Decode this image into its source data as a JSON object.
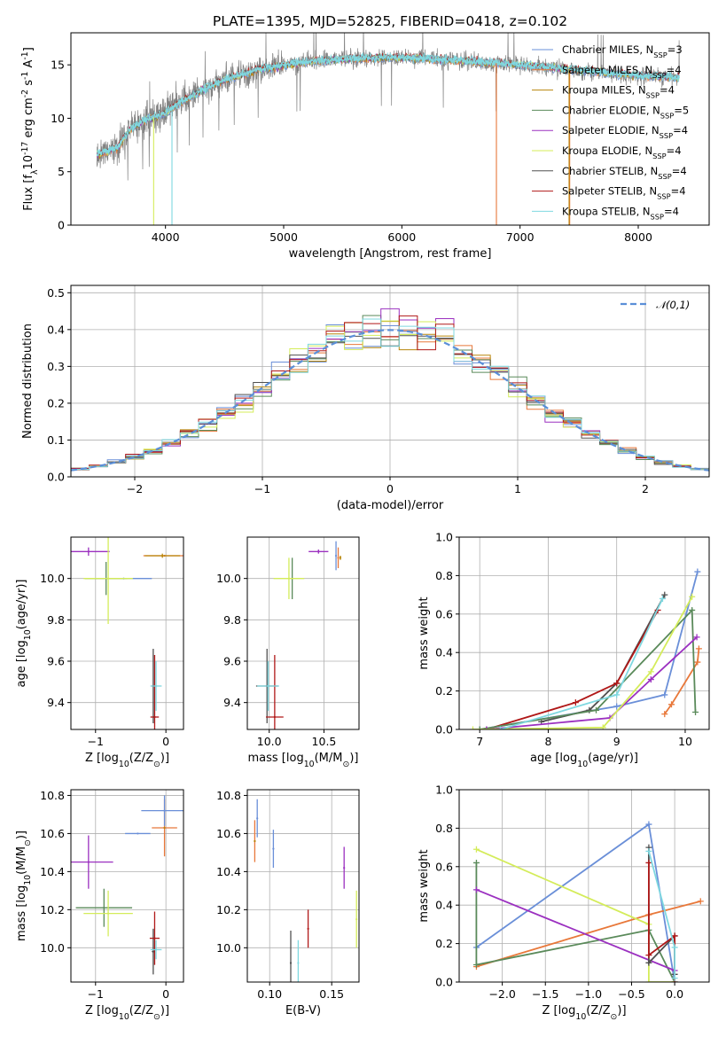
{
  "figure": {
    "title": "PLATE=1395, MJD=52825, FIBERID=0418, z=0.102"
  },
  "models": [
    {
      "name": "Chabrier MILES, N$_{SSP}$=3",
      "color": "#6a8fd8"
    },
    {
      "name": "Salpeter MILES, N$_{SSP}$=4",
      "color": "#e8783a"
    },
    {
      "name": "Kroupa MILES, N$_{SSP}$=4",
      "color": "#b8860b"
    },
    {
      "name": "Chabrier ELODIE, N$_{SSP}$=5",
      "color": "#5a8a5a"
    },
    {
      "name": "Salpeter ELODIE, N$_{SSP}$=4",
      "color": "#9b30c0"
    },
    {
      "name": "Kroupa ELODIE, N$_{SSP}$=4",
      "color": "#d4ec5a"
    },
    {
      "name": "Chabrier STELIB, N$_{SSP}$=4",
      "color": "#505050"
    },
    {
      "name": "Salpeter STELIB, N$_{SSP}$=4",
      "color": "#b01818"
    },
    {
      "name": "Kroupa STELIB, N$_{SSP}$=4",
      "color": "#7fd8e0"
    }
  ],
  "chart_data": [
    {
      "id": "spectrum",
      "type": "line",
      "title": "PLATE=1395, MJD=52825, FIBERID=0418, z=0.102",
      "xlabel": "wavelength [Angstrom, rest frame]",
      "ylabel": "Flux [f$_\\lambda$10$^{-17}$ erg cm$^{-2}$ s$^{-1}$ A$^{-1}$]",
      "xlim": [
        3200,
        8600
      ],
      "ylim": [
        0,
        18
      ],
      "xticks": [
        4000,
        5000,
        6000,
        7000,
        8000
      ],
      "yticks": [
        0,
        5,
        10,
        15
      ],
      "continuum": [
        [
          3420,
          6.6
        ],
        [
          3600,
          7.3
        ],
        [
          3700,
          9.0
        ],
        [
          3800,
          9.7
        ],
        [
          3900,
          10.1
        ],
        [
          4000,
          10.5
        ],
        [
          4100,
          11.3
        ],
        [
          4300,
          12.6
        ],
        [
          4500,
          13.6
        ],
        [
          4800,
          14.6
        ],
        [
          5200,
          15.3
        ],
        [
          5600,
          15.6
        ],
        [
          6000,
          15.7
        ],
        [
          6500,
          15.4
        ],
        [
          7000,
          15.0
        ],
        [
          7500,
          14.5
        ],
        [
          8000,
          14.0
        ],
        [
          8350,
          13.8
        ]
      ],
      "data_color": "#808080",
      "model_color": "#7fd8e0",
      "legend_position": "upper right"
    },
    {
      "id": "residuals",
      "type": "histogram",
      "xlabel": "(data-model)/error",
      "ylabel": "Normed distribution",
      "xlim": [
        -2.5,
        2.5
      ],
      "ylim": [
        0,
        0.52
      ],
      "xticks": [
        -2,
        -1,
        0,
        1,
        2
      ],
      "yticks": [
        0.0,
        0.1,
        0.2,
        0.3,
        0.4,
        0.5
      ],
      "bins": 35,
      "reference_label": "$\\mathcal{N}(0,1)$",
      "reference_color": "#5b8fd8",
      "legend_position": "upper right",
      "grid": true
    },
    {
      "id": "age_vs_Z",
      "type": "errorbar",
      "xlabel": "Z [log$_{10}$(Z/Z$_\\odot$)]",
      "ylabel": "age  [log$_{10}$(age/yr)]",
      "xlim": [
        -1.35,
        0.25
      ],
      "ylim": [
        9.27,
        10.2
      ],
      "xticks": [
        -1,
        0
      ],
      "yticks": [
        9.4,
        9.6,
        9.8,
        10.0
      ],
      "grid": true,
      "points": [
        {
          "model": 0,
          "x": -0.6,
          "y": 10.0,
          "xerr": 0.4,
          "yerr": 0.0
        },
        {
          "model": 1,
          "x": -0.02,
          "y": 10.11,
          "xerr": 0.3,
          "yerr": 0.0
        },
        {
          "model": 2,
          "x": -0.05,
          "y": 10.11,
          "xerr": 0.25,
          "yerr": 0.01
        },
        {
          "model": 3,
          "x": -0.85,
          "y": 10.0,
          "xerr": 0.3,
          "yerr": 0.08
        },
        {
          "model": 4,
          "x": -1.1,
          "y": 10.13,
          "xerr": 0.3,
          "yerr": 0.02
        },
        {
          "model": 5,
          "x": -0.82,
          "y": 10.0,
          "xerr": 0.35,
          "yerr": 0.22
        },
        {
          "model": 6,
          "x": -0.18,
          "y": 9.48,
          "xerr": 0.02,
          "yerr": 0.18
        },
        {
          "model": 7,
          "x": -0.16,
          "y": 9.33,
          "xerr": 0.06,
          "yerr": 0.3
        },
        {
          "model": 8,
          "x": -0.14,
          "y": 9.48,
          "xerr": 0.08,
          "yerr": 0.12
        }
      ]
    },
    {
      "id": "age_vs_mass",
      "type": "errorbar",
      "xlabel": "mass [log$_{10}$(M/M$_\\odot$)]",
      "ylabel": "",
      "xlim": [
        9.8,
        10.82
      ],
      "ylim": [
        9.27,
        10.2
      ],
      "xticks": [
        10.0,
        10.5
      ],
      "yticks": [
        9.4,
        9.6,
        9.8,
        10.0
      ],
      "grid": true,
      "points": [
        {
          "model": 0,
          "x": 10.61,
          "y": 10.11,
          "xerr": 0.0,
          "yerr": 0.07
        },
        {
          "model": 1,
          "x": 10.63,
          "y": 10.1,
          "xerr": 0.0,
          "yerr": 0.05
        },
        {
          "model": 2,
          "x": 10.65,
          "y": 10.1,
          "xerr": 0.0,
          "yerr": 0.01
        },
        {
          "model": 3,
          "x": 10.21,
          "y": 10.0,
          "xerr": 0.0,
          "yerr": 0.1
        },
        {
          "model": 4,
          "x": 10.45,
          "y": 10.13,
          "xerr": 0.09,
          "yerr": 0.01
        },
        {
          "model": 5,
          "x": 10.18,
          "y": 10.0,
          "xerr": 0.14,
          "yerr": 0.1
        },
        {
          "model": 6,
          "x": 9.98,
          "y": 9.48,
          "xerr": 0.1,
          "yerr": 0.18
        },
        {
          "model": 7,
          "x": 10.05,
          "y": 9.33,
          "xerr": 0.08,
          "yerr": 0.3
        },
        {
          "model": 8,
          "x": 9.99,
          "y": 9.48,
          "xerr": 0.1,
          "yerr": 0.12
        }
      ]
    },
    {
      "id": "massweight_vs_age",
      "type": "line",
      "xlabel": "age  [log$_{10}$(age/yr)]",
      "ylabel": "mass weight",
      "xlim": [
        6.7,
        10.35
      ],
      "ylim": [
        0,
        1.0
      ],
      "xticks": [
        7,
        8,
        9,
        10
      ],
      "yticks": [
        0.0,
        0.2,
        0.4,
        0.6,
        0.8,
        1.0
      ],
      "grid": true,
      "series": [
        {
          "model": 0,
          "x": [
            7.0,
            9.0,
            9.7,
            10.18
          ],
          "y": [
            0.0,
            0.12,
            0.18,
            0.82
          ]
        },
        {
          "model": 1,
          "x": [
            9.7,
            9.8,
            10.18,
            10.2
          ],
          "y": [
            0.08,
            0.13,
            0.35,
            0.42
          ]
        },
        {
          "model": 6,
          "x": [
            7.9,
            8.6,
            9.0,
            9.7
          ],
          "y": [
            0.04,
            0.1,
            0.24,
            0.7
          ]
        },
        {
          "model": 7,
          "x": [
            7.1,
            8.4,
            9.0,
            9.6
          ],
          "y": [
            0.0,
            0.14,
            0.24,
            0.62
          ]
        },
        {
          "model": 3,
          "x": [
            7.0,
            8.7,
            10.1,
            10.15
          ],
          "y": [
            0.0,
            0.1,
            0.62,
            0.09
          ]
        },
        {
          "model": 4,
          "x": [
            7.1,
            8.9,
            9.5,
            10.17
          ],
          "y": [
            0.0,
            0.06,
            0.26,
            0.48
          ]
        },
        {
          "model": 5,
          "x": [
            6.9,
            8.8,
            9.5,
            10.1
          ],
          "y": [
            0.0,
            0.01,
            0.3,
            0.69
          ]
        },
        {
          "model": 8,
          "x": [
            7.3,
            9.0,
            9.67
          ],
          "y": [
            0.0,
            0.18,
            0.68
          ]
        }
      ]
    },
    {
      "id": "mass_vs_Z",
      "type": "errorbar",
      "xlabel": "Z [log$_{10}$(Z/Z$_\\odot$)]",
      "ylabel": "mass [log$_{10}$(M/M$_\\odot$)]",
      "xlim": [
        -1.35,
        0.25
      ],
      "ylim": [
        9.82,
        10.83
      ],
      "xticks": [
        -1,
        0
      ],
      "yticks": [
        10.0,
        10.2,
        10.4,
        10.6,
        10.8
      ],
      "grid": true,
      "points": [
        {
          "model": 0,
          "x": -0.4,
          "y": 10.6,
          "xerr": 0.18,
          "yerr": 0.0
        },
        {
          "model": 1,
          "x": -0.02,
          "y": 10.63,
          "xerr": 0.18,
          "yerr": 0.15
        },
        {
          "model": 2,
          "x": -0.02,
          "y": 10.63,
          "xerr": 0.0,
          "yerr": 0.0
        },
        {
          "model": 3,
          "x": -0.88,
          "y": 10.21,
          "xerr": 0.4,
          "yerr": 0.1
        },
        {
          "model": 4,
          "x": -1.1,
          "y": 10.45,
          "xerr": 0.35,
          "yerr": 0.14
        },
        {
          "model": 5,
          "x": -0.82,
          "y": 10.18,
          "xerr": 0.35,
          "yerr": 0.12
        },
        {
          "model": 6,
          "x": -0.18,
          "y": 9.98,
          "xerr": 0.02,
          "yerr": 0.12
        },
        {
          "model": 7,
          "x": -0.16,
          "y": 10.05,
          "xerr": 0.07,
          "yerr": 0.14
        },
        {
          "model": 8,
          "x": -0.14,
          "y": 9.99,
          "xerr": 0.08,
          "yerr": 0.05
        },
        {
          "model": 0,
          "x": -0.02,
          "y": 10.72,
          "xerr": 0.33,
          "yerr": 0.08
        }
      ]
    },
    {
      "id": "mass_vs_ebv",
      "type": "errorbar",
      "xlabel": "E(B-V)",
      "ylabel": "",
      "xlim": [
        0.082,
        0.172
      ],
      "ylim": [
        9.82,
        10.83
      ],
      "xticks": [
        0.1,
        0.15
      ],
      "yticks": [
        10.0,
        10.2,
        10.4,
        10.6,
        10.8
      ],
      "grid": true,
      "points": [
        {
          "model": 1,
          "x": 0.088,
          "y": 10.56,
          "xerr": 0.0,
          "yerr": 0.11
        },
        {
          "model": 2,
          "x": 0.088,
          "y": 10.56,
          "xerr": 0.0,
          "yerr": 0.0
        },
        {
          "model": 0,
          "x": 0.09,
          "y": 10.68,
          "xerr": 0.0,
          "yerr": 0.1
        },
        {
          "model": 0,
          "x": 0.103,
          "y": 10.52,
          "xerr": 0.0,
          "yerr": 0.1
        },
        {
          "model": 6,
          "x": 0.117,
          "y": 9.92,
          "xerr": 0.0,
          "yerr": 0.17
        },
        {
          "model": 8,
          "x": 0.123,
          "y": 9.92,
          "xerr": 0.0,
          "yerr": 0.12
        },
        {
          "model": 7,
          "x": 0.131,
          "y": 10.1,
          "xerr": 0.0,
          "yerr": 0.1
        },
        {
          "model": 4,
          "x": 0.16,
          "y": 10.42,
          "xerr": 0.0,
          "yerr": 0.11
        },
        {
          "model": 5,
          "x": 0.17,
          "y": 10.15,
          "xerr": 0.0,
          "yerr": 0.15
        }
      ]
    },
    {
      "id": "massweight_vs_Z",
      "type": "line",
      "xlabel": "Z [log$_{10}$(Z/Z$_\\odot$)]",
      "ylabel": "mass weight",
      "xlim": [
        -2.5,
        0.4
      ],
      "ylim": [
        0,
        1.0
      ],
      "xticks": [
        -2.0,
        -1.5,
        -1.0,
        -0.5,
        0.0
      ],
      "yticks": [
        0.0,
        0.2,
        0.4,
        0.6,
        0.8,
        1.0
      ],
      "grid": true,
      "series": [
        {
          "model": 0,
          "x": [
            -2.3,
            -0.3,
            0.0,
            0.0
          ],
          "y": [
            0.18,
            0.82,
            0.0,
            0.0
          ]
        },
        {
          "model": 1,
          "x": [
            -2.3,
            -0.3,
            0.3
          ],
          "y": [
            0.08,
            0.35,
            0.42
          ]
        },
        {
          "model": 3,
          "x": [
            -2.3,
            -2.3,
            -0.3,
            0.0
          ],
          "y": [
            0.62,
            0.09,
            0.27,
            0.0
          ]
        },
        {
          "model": 4,
          "x": [
            -2.3,
            0.0
          ],
          "y": [
            0.48,
            0.06
          ]
        },
        {
          "model": 5,
          "x": [
            -2.3,
            -0.3,
            -0.3,
            0.0
          ],
          "y": [
            0.69,
            0.3,
            0.0,
            0.0
          ]
        },
        {
          "model": 6,
          "x": [
            -0.3,
            -0.3,
            0.0,
            0.0
          ],
          "y": [
            0.7,
            0.1,
            0.24,
            0.04
          ]
        },
        {
          "model": 7,
          "x": [
            -0.3,
            -0.3,
            0.0,
            0.0
          ],
          "y": [
            0.62,
            0.14,
            0.24,
            0.0
          ]
        },
        {
          "model": 8,
          "x": [
            -0.3,
            0.0,
            0.0
          ],
          "y": [
            0.68,
            0.18,
            0.02
          ]
        }
      ]
    }
  ]
}
